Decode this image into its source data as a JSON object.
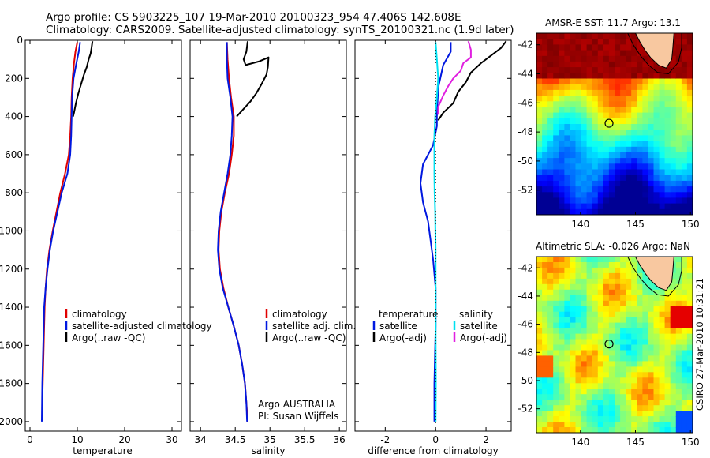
{
  "title_line1": "Argo profile: CS 5903225_107 19-Mar-2010 20100323_954 47.406S 142.608E",
  "title_line2": "Climatology: CARS2009. Satellite-adjusted climatology: synTS_20100321.nc (1.9d later)",
  "side_label": "CSIRO 27-Mar-2010 10:31:21",
  "colors": {
    "clim": "#e00000",
    "sat": "#0018e0",
    "argo": "#000000",
    "sat_sal": "#00e0f0",
    "argo_adj": "#e020e0",
    "land": "#f8c8a0"
  },
  "chart_data": [
    {
      "type": "line",
      "id": "temp",
      "xlabel": "temperature",
      "xlim": [
        -1,
        32
      ],
      "ylim": [
        2050,
        0
      ],
      "xticks": [
        0,
        10,
        20,
        30
      ],
      "yticks": [
        0,
        200,
        400,
        600,
        800,
        1000,
        1200,
        1400,
        1600,
        1800,
        2000
      ],
      "legend": [
        "climatology",
        "satellite-adjusted climatology",
        "Argo(..raw -QC)"
      ],
      "series": [
        {
          "name": "climatology",
          "color": "clim",
          "points": [
            [
              10,
              10
            ],
            [
              9.6,
              60
            ],
            [
              9.3,
              120
            ],
            [
              9,
              200
            ],
            [
              8.8,
              300
            ],
            [
              8.7,
              400
            ],
            [
              8.5,
              500
            ],
            [
              8.2,
              600
            ],
            [
              7.4,
              700
            ],
            [
              6.4,
              800
            ],
            [
              5.6,
              900
            ],
            [
              4.8,
              1000
            ],
            [
              4.1,
              1100
            ],
            [
              3.6,
              1200
            ],
            [
              3.3,
              1300
            ],
            [
              3.1,
              1400
            ],
            [
              2.9,
              1600
            ],
            [
              2.7,
              1800
            ],
            [
              2.6,
              1900
            ]
          ]
        },
        {
          "name": "satellite",
          "color": "sat",
          "points": [
            [
              10.6,
              10
            ],
            [
              10.3,
              60
            ],
            [
              9.8,
              120
            ],
            [
              9.2,
              200
            ],
            [
              8.9,
              300
            ],
            [
              8.8,
              400
            ],
            [
              8.7,
              500
            ],
            [
              8.5,
              600
            ],
            [
              7.9,
              700
            ],
            [
              6.7,
              800
            ],
            [
              5.8,
              900
            ],
            [
              4.9,
              1000
            ],
            [
              4.2,
              1100
            ],
            [
              3.7,
              1200
            ],
            [
              3.3,
              1300
            ],
            [
              3.0,
              1400
            ],
            [
              2.8,
              1600
            ],
            [
              2.6,
              1800
            ],
            [
              2.5,
              2000
            ]
          ]
        },
        {
          "name": "argo",
          "color": "argo",
          "points": [
            [
              13.2,
              5
            ],
            [
              13.0,
              40
            ],
            [
              12.8,
              70
            ],
            [
              12.4,
              100
            ],
            [
              12.0,
              140
            ],
            [
              11.4,
              180
            ],
            [
              10.8,
              230
            ],
            [
              10.2,
              280
            ],
            [
              9.7,
              330
            ],
            [
              9.3,
              380
            ],
            [
              9.1,
              400
            ]
          ]
        }
      ]
    },
    {
      "type": "line",
      "id": "sal",
      "xlabel": "salinity",
      "xlim": [
        33.85,
        36.1
      ],
      "ylim": [
        2050,
        0
      ],
      "xticks": [
        34,
        34.5,
        35,
        35.5,
        36
      ],
      "legend": [
        "climatology",
        "satellite adj. clim.",
        "Argo(..raw -QC)"
      ],
      "annotation": [
        "Argo AUSTRALIA",
        "PI: Susan Wijffels"
      ],
      "series": [
        {
          "name": "climatology",
          "color": "clim",
          "points": [
            [
              34.38,
              10
            ],
            [
              34.39,
              100
            ],
            [
              34.41,
              200
            ],
            [
              34.44,
              300
            ],
            [
              34.48,
              400
            ],
            [
              34.48,
              500
            ],
            [
              34.45,
              600
            ],
            [
              34.41,
              700
            ],
            [
              34.35,
              800
            ],
            [
              34.3,
              900
            ],
            [
              34.27,
              1000
            ],
            [
              34.26,
              1100
            ],
            [
              34.28,
              1200
            ],
            [
              34.33,
              1300
            ],
            [
              34.4,
              1400
            ],
            [
              34.48,
              1500
            ],
            [
              34.55,
              1600
            ],
            [
              34.6,
              1700
            ],
            [
              34.64,
              1800
            ],
            [
              34.66,
              1900
            ],
            [
              34.68,
              2000
            ]
          ]
        },
        {
          "name": "satellite",
          "color": "sat",
          "points": [
            [
              34.38,
              10
            ],
            [
              34.38,
              100
            ],
            [
              34.39,
              200
            ],
            [
              34.43,
              300
            ],
            [
              34.46,
              400
            ],
            [
              34.45,
              500
            ],
            [
              34.43,
              600
            ],
            [
              34.39,
              700
            ],
            [
              34.34,
              800
            ],
            [
              34.29,
              900
            ],
            [
              34.26,
              1000
            ],
            [
              34.25,
              1100
            ],
            [
              34.27,
              1200
            ],
            [
              34.32,
              1300
            ],
            [
              34.4,
              1400
            ],
            [
              34.48,
              1500
            ],
            [
              34.55,
              1600
            ],
            [
              34.6,
              1700
            ],
            [
              34.64,
              1800
            ],
            [
              34.66,
              1900
            ],
            [
              34.67,
              2000
            ]
          ]
        },
        {
          "name": "argo",
          "color": "argo",
          "points": [
            [
              34.68,
              5
            ],
            [
              34.66,
              60
            ],
            [
              34.62,
              100
            ],
            [
              34.65,
              130
            ],
            [
              34.85,
              110
            ],
            [
              34.98,
              90
            ],
            [
              34.97,
              140
            ],
            [
              34.95,
              180
            ],
            [
              34.88,
              230
            ],
            [
              34.8,
              280
            ],
            [
              34.72,
              320
            ],
            [
              34.62,
              360
            ],
            [
              34.52,
              400
            ]
          ]
        }
      ]
    },
    {
      "type": "line",
      "id": "diff",
      "xlabel": "difference from climatology",
      "xlim": [
        -3.2,
        3.0
      ],
      "ylim": [
        2050,
        0
      ],
      "xticks": [
        -2,
        0,
        2
      ],
      "legend_left_header": "temperature",
      "legend_right_header": "salinity",
      "legend_left": [
        "satellite",
        "Argo(-adj)"
      ],
      "legend_right": [
        "satellite",
        "Argo(-adj)"
      ],
      "series": [
        {
          "name": "temp-satellite",
          "color": "sat",
          "points": [
            [
              0.6,
              10
            ],
            [
              0.6,
              60
            ],
            [
              0.3,
              130
            ],
            [
              0.1,
              250
            ],
            [
              0.05,
              400
            ],
            [
              0.05,
              450
            ],
            [
              -0.1,
              550
            ],
            [
              -0.5,
              650
            ],
            [
              -0.6,
              750
            ],
            [
              -0.5,
              850
            ],
            [
              -0.3,
              950
            ],
            [
              -0.2,
              1050
            ],
            [
              -0.1,
              1150
            ],
            [
              0,
              1300
            ],
            [
              0,
              1500
            ],
            [
              -0.05,
              1800
            ],
            [
              -0.05,
              2000
            ]
          ]
        },
        {
          "name": "temp-argo",
          "color": "argo",
          "points": [
            [
              2.8,
              5
            ],
            [
              2.6,
              40
            ],
            [
              2.2,
              80
            ],
            [
              1.8,
              120
            ],
            [
              1.4,
              170
            ],
            [
              1.2,
              220
            ],
            [
              0.9,
              270
            ],
            [
              0.7,
              330
            ],
            [
              0.3,
              380
            ],
            [
              0.1,
              420
            ]
          ]
        },
        {
          "name": "sal-satellite",
          "color": "sat_sal",
          "points": [
            [
              0,
              10
            ],
            [
              0.05,
              100
            ],
            [
              0.1,
              200
            ],
            [
              0.05,
              300
            ],
            [
              -0.02,
              400
            ],
            [
              -0.05,
              500
            ],
            [
              -0.05,
              600
            ],
            [
              -0.05,
              700
            ],
            [
              -0.04,
              800
            ],
            [
              -0.02,
              900
            ],
            [
              -0.01,
              1000
            ],
            [
              0,
              1100
            ],
            [
              0,
              1300
            ],
            [
              0,
              1500
            ],
            [
              0.01,
              1800
            ],
            [
              0,
              2000
            ]
          ]
        },
        {
          "name": "sal-argo",
          "color": "argo_adj",
          "points": [
            [
              1.3,
              5
            ],
            [
              1.4,
              50
            ],
            [
              1.4,
              90
            ],
            [
              1.1,
              120
            ],
            [
              1.0,
              160
            ],
            [
              0.7,
              200
            ],
            [
              0.5,
              240
            ],
            [
              0.3,
              290
            ],
            [
              0.1,
              350
            ],
            [
              0.1,
              390
            ]
          ]
        }
      ]
    },
    {
      "type": "heatmap",
      "id": "sst",
      "title": "AMSR-E SST: 11.7 Argo: 13.1",
      "xlim": [
        136,
        150.2
      ],
      "ylim": [
        -53.7,
        -41.2
      ],
      "xticks": [
        140,
        145,
        150
      ],
      "yticks": [
        -42,
        -44,
        -46,
        -48,
        -50,
        -52
      ],
      "marker": [
        142.6,
        -47.4
      ]
    },
    {
      "type": "heatmap",
      "id": "sla",
      "title": "Altimetric SLA: -0.026 Argo: NaN",
      "xlim": [
        136,
        150.2
      ],
      "ylim": [
        -53.7,
        -41.2
      ],
      "xticks": [
        140,
        145,
        150
      ],
      "yticks": [
        -42,
        -44,
        -46,
        -48,
        -50,
        -52
      ],
      "marker": [
        142.6,
        -47.4
      ]
    }
  ]
}
